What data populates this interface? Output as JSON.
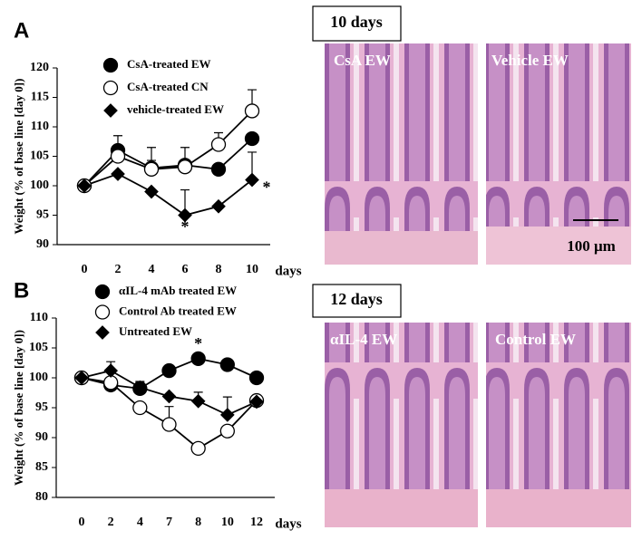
{
  "chart_data": [
    {
      "type": "line",
      "panel": "A",
      "ylabel": "Weight (% of base line [day 0])",
      "xlabel": "days",
      "categories": [
        "0",
        "2",
        "4",
        "6",
        "8",
        "10"
      ],
      "ylim": [
        90,
        120
      ],
      "yticks": [
        90,
        95,
        100,
        105,
        110,
        115,
        120
      ],
      "series": [
        {
          "name": "CsA-treated EW",
          "color": "#000000",
          "marker": "circle",
          "fill": "#000000",
          "values": [
            100,
            106,
            103,
            103.5,
            102.8,
            108
          ],
          "errors": [
            0,
            2.5,
            3.5,
            3,
            0,
            0
          ]
        },
        {
          "name": "CsA-treated CN",
          "color": "#000000",
          "marker": "circle",
          "fill": "#ffffff",
          "values": [
            100,
            105,
            102.8,
            103.2,
            107,
            112.7
          ],
          "errors": [
            0,
            0,
            1.5,
            1,
            2,
            3.6
          ]
        },
        {
          "name": "vehicle-treated EW",
          "color": "#000000",
          "marker": "diamond",
          "fill": "#000000",
          "values": [
            100,
            102,
            99,
            95,
            96.5,
            101
          ],
          "errors": [
            0,
            0,
            0,
            4.3,
            0,
            4.7
          ]
        }
      ],
      "annotations": [
        {
          "text": "*",
          "x": "6",
          "y": 92.8
        },
        {
          "text": "*",
          "x": "10",
          "y": 99.5
        }
      ]
    },
    {
      "type": "line",
      "panel": "B",
      "ylabel": "Weight (% of base line [day 0])",
      "xlabel": "days",
      "categories": [
        "0",
        "2",
        "4",
        "7",
        "8",
        "10",
        "12"
      ],
      "ylim": [
        80,
        110
      ],
      "yticks": [
        80,
        85,
        90,
        95,
        100,
        105,
        110
      ],
      "series": [
        {
          "name": "αIL-4 mAb treated EW",
          "color": "#000000",
          "marker": "circle",
          "fill": "#000000",
          "values": [
            100,
            98.8,
            98.2,
            101.2,
            103.2,
            102.2,
            100
          ],
          "errors": [
            0,
            0,
            1,
            0,
            0,
            0,
            0
          ]
        },
        {
          "name": "Control Ab treated EW",
          "color": "#000000",
          "marker": "circle",
          "fill": "#ffffff",
          "values": [
            100,
            99.2,
            95,
            92.2,
            88.2,
            91.1,
            96.2
          ],
          "errors": [
            0,
            0,
            0,
            3,
            0,
            0,
            0
          ]
        },
        {
          "name": "Untreated EW",
          "color": "#000000",
          "marker": "diamond",
          "fill": "#000000",
          "values": [
            100,
            101.2,
            98.4,
            96.9,
            96.1,
            93.8,
            96
          ],
          "errors": [
            0,
            1.5,
            1,
            0,
            1.5,
            3,
            0
          ]
        }
      ],
      "annotations": [
        {
          "text": "*",
          "x": "8",
          "y": 105.5
        }
      ]
    }
  ],
  "images": {
    "top_title": "10 days",
    "bottom_title": "12 days",
    "labels": [
      "CsA EW",
      "Vehicle EW",
      "αIL-4 EW",
      "Control EW"
    ],
    "scale_bar": "100 μm"
  }
}
